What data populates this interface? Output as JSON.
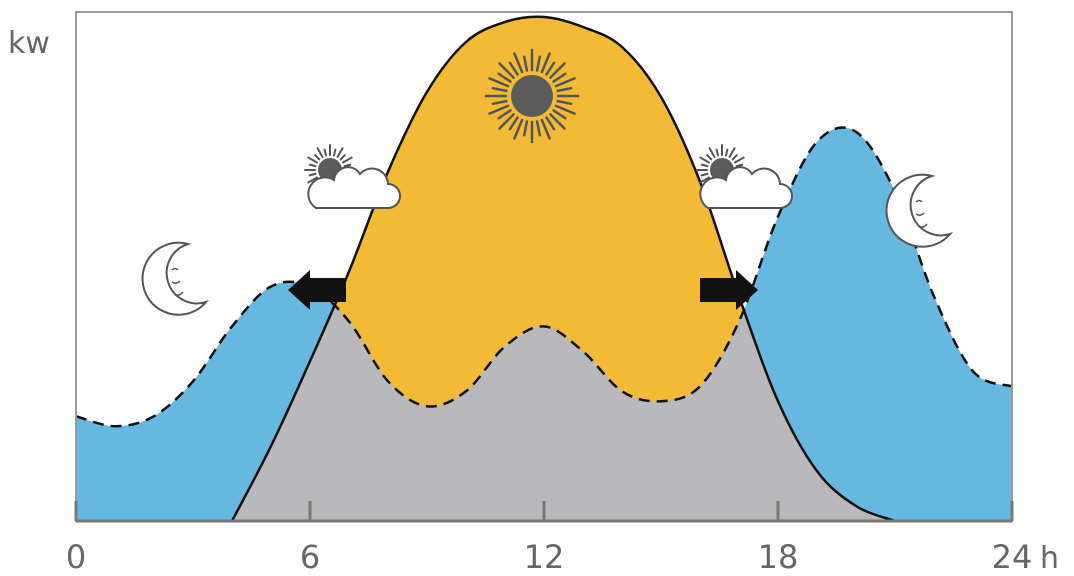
{
  "chart_data": {
    "type": "area",
    "ylabel": "kw",
    "xlabel": "h",
    "x_ticks": [
      "0",
      "6",
      "12",
      "18",
      "24"
    ],
    "xlim": [
      0,
      24
    ],
    "ylim": [
      0,
      10
    ],
    "series": [
      {
        "x": [
          0,
          1,
          2,
          3,
          4,
          5,
          6,
          7,
          8,
          9,
          10,
          11,
          12,
          13,
          14,
          15,
          16,
          17,
          18,
          19,
          20,
          21,
          22,
          23,
          24
        ],
        "values": [
          2.1,
          1.9,
          2.1,
          2.8,
          3.9,
          4.7,
          4.7,
          4.0,
          2.8,
          2.3,
          2.6,
          3.5,
          3.9,
          3.4,
          2.6,
          2.4,
          2.7,
          4.0,
          6.1,
          7.6,
          7.8,
          6.6,
          4.5,
          3.0,
          2.7
        ],
        "color": "#66b8e0"
      },
      {
        "x": [
          4,
          5,
          6,
          7,
          8,
          9,
          10,
          11,
          12,
          13,
          14,
          15,
          16,
          17,
          18,
          19,
          20,
          21
        ],
        "values": [
          0,
          1.5,
          3.2,
          5.0,
          7.0,
          8.6,
          9.6,
          10.0,
          10.1,
          9.9,
          9.5,
          8.5,
          6.8,
          4.5,
          2.4,
          1.0,
          0.3,
          0
        ],
        "color": "#f3bb35"
      }
    ],
    "overlap_color": "#b9b9bb",
    "icons": [
      "crescent-moon-icon",
      "sun-behind-cloud-icon",
      "sun-icon",
      "sun-behind-cloud-icon",
      "crescent-moon-icon",
      "arrow-left-icon",
      "arrow-right-icon"
    ]
  }
}
